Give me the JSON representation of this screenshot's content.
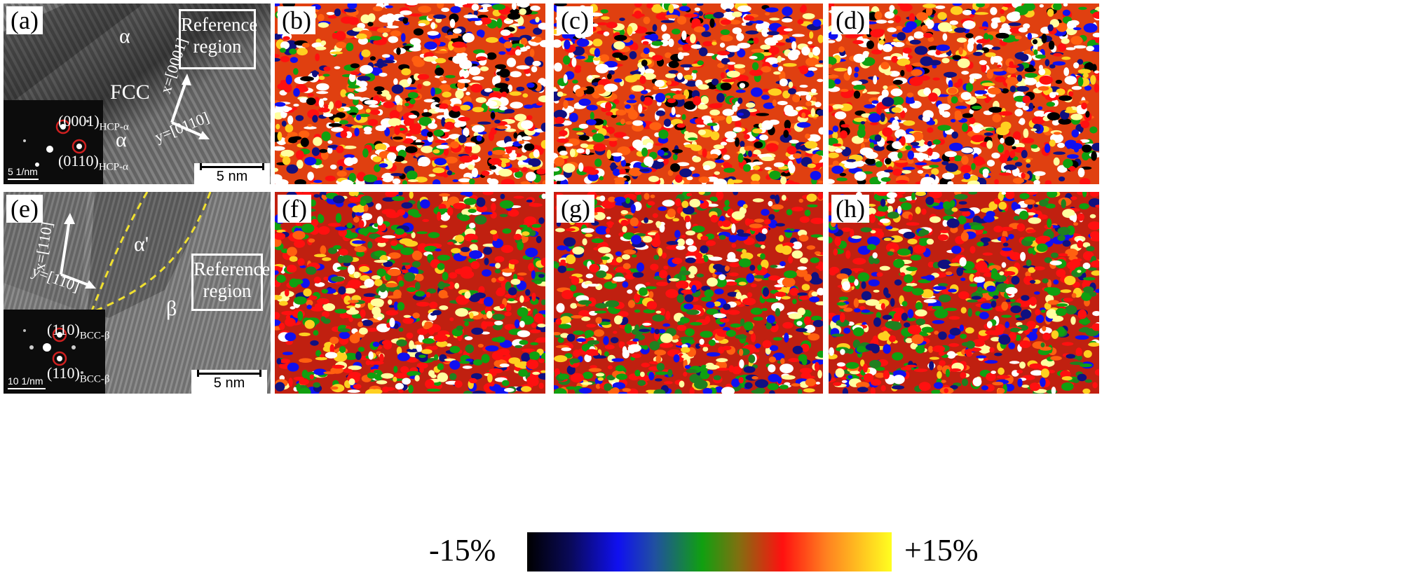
{
  "panels": [
    {
      "id": "a",
      "label": "(a)"
    },
    {
      "id": "b",
      "label": "(b)"
    },
    {
      "id": "c",
      "label": "(c)"
    },
    {
      "id": "d",
      "label": "(d)"
    },
    {
      "id": "e",
      "label": "(e)"
    },
    {
      "id": "f",
      "label": "(f)"
    },
    {
      "id": "g",
      "label": "(g)"
    },
    {
      "id": "h",
      "label": "(h)"
    }
  ],
  "panel_a": {
    "phase_top": "α",
    "phase_mid": "FCC",
    "phase_bottom": "α",
    "reference_line1": "Reference",
    "reference_line2": "region",
    "axis_x": "x=[0001]",
    "axis_y": "y=[0110]",
    "inset_spot1": "(0001)",
    "inset_spot1_sub": "HCP-α",
    "inset_spot2": "(0110)",
    "inset_spot2_sub": "HCP-α",
    "inset_scale": "5 1/nm",
    "scale_bar": "5 nm"
  },
  "panel_e": {
    "phase_alpha": "α'",
    "phase_beta": "β",
    "reference_line1": "Reference",
    "reference_line2": "region",
    "axis_x": "x=[110]",
    "axis_y": "y=[110]",
    "inset_spot1": "(110)",
    "inset_spot1_sub": "BCC-β",
    "inset_spot2": "(110)",
    "inset_spot2_sub": "BCC-β",
    "inset_scale": "10 1/nm",
    "scale_bar": "5 nm"
  },
  "colorbar": {
    "min_label": "-15%",
    "max_label": "+15%",
    "colors": [
      "#000000",
      "#1010f0",
      "#10a010",
      "#ff1010",
      "#ffff20"
    ]
  },
  "colors": {
    "dashed_boundary": "#f0e030",
    "annotation": "#ffffff",
    "inset_ring": "#d02020"
  }
}
